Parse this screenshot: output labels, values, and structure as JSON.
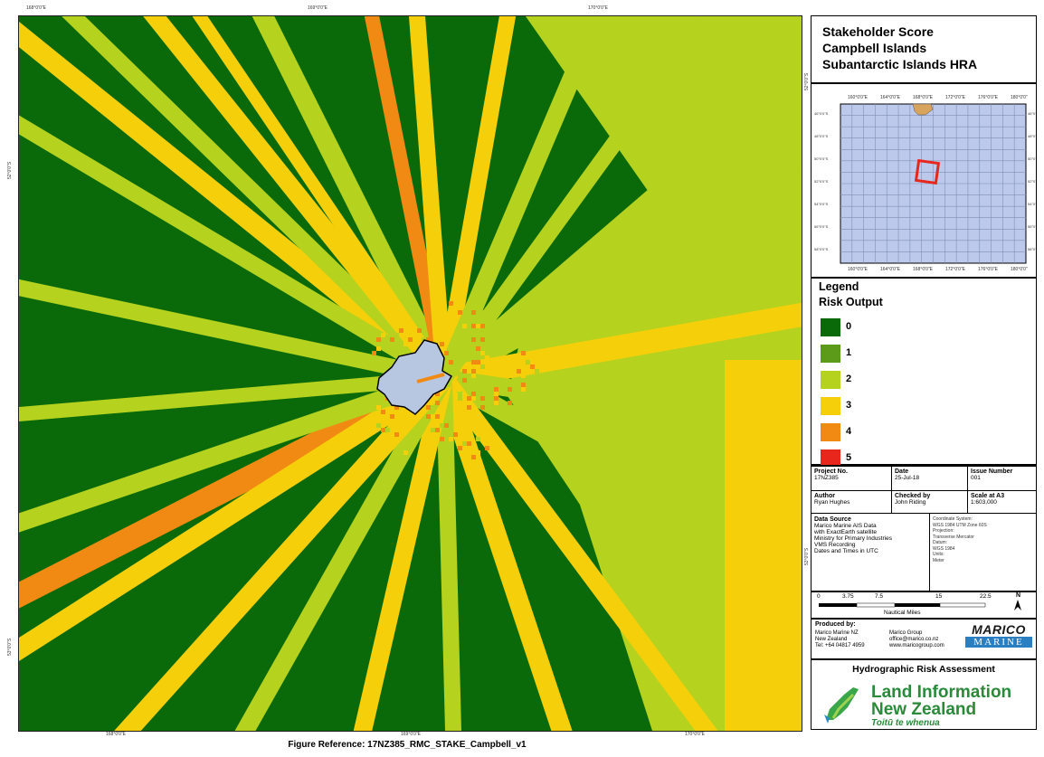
{
  "map": {
    "lon_ticks": [
      "168°0'0\"E",
      "169°0'0\"E",
      "170°0'0\"E"
    ],
    "lat_ticks": [
      "52°0'0\"S",
      "53°0'0\"S"
    ],
    "figure_reference": "Figure Reference: 17NZ385_RMC_STAKE_Campbell_v1",
    "colors": {
      "0": "#0a6a0a",
      "1": "#5c9a1a",
      "2": "#b5d21e",
      "3": "#f6cf0b",
      "4": "#f18a13",
      "5": "#e8261c",
      "land": "#b7c6e1"
    }
  },
  "title": {
    "line1": "Stakeholder Score",
    "line2": "Campbell Islands",
    "line3": "Subantarctic Islands HRA"
  },
  "inset": {
    "lon_labels": [
      "160°0'0\"E",
      "164°0'0\"E",
      "168°0'0\"E",
      "172°0'0\"E",
      "176°0'0\"E",
      "180°0'0\""
    ],
    "lat_labels": [
      "46°0'0\"S",
      "48°0'0\"S",
      "50°0'0\"S",
      "52°0'0\"S",
      "54°0'0\"S",
      "56°0'0\"S",
      "58°0'0\"S"
    ]
  },
  "legend": {
    "title": "Legend",
    "subtitle": "Risk Output",
    "items": [
      {
        "label": "0",
        "color": "#0a6a0a"
      },
      {
        "label": "1",
        "color": "#5c9a1a"
      },
      {
        "label": "2",
        "color": "#b5d21e"
      },
      {
        "label": "3",
        "color": "#f6cf0b"
      },
      {
        "label": "4",
        "color": "#f18a13"
      },
      {
        "label": "5",
        "color": "#e8261c"
      }
    ]
  },
  "meta": {
    "project_no_label": "Project No.",
    "project_no": "17NZ385",
    "date_label": "Date",
    "date": "25-Jul-18",
    "issue_label": "Issue Number",
    "issue": "001",
    "author_label": "Author",
    "author": "Ryan Hughes",
    "checked_label": "Checked by",
    "checked": "John Riding",
    "scale_label": "Scale at A3",
    "scale": "1:603,000",
    "data_source_label": "Data Source",
    "data_source_lines": [
      "Marico Marine AIS Data",
      "with ExactEarth satellite",
      "Ministry for Primary Industries",
      "VMS Recording",
      "Dates and Times in UTC"
    ],
    "coord_lines": [
      "Coordinate System:",
      "WGS 1984 UTM Zone 60S",
      "Projection:",
      "Transverse Mercator",
      "Datum:",
      "WGS 1984",
      "Units:",
      "Meter"
    ]
  },
  "scalebar": {
    "ticks": [
      "0",
      "3.75",
      "7.5",
      "15",
      "22.5"
    ],
    "units": "Nautical Miles",
    "north": "N"
  },
  "producer": {
    "label": "Produced by:",
    "left_lines": [
      "Marico Marine NZ",
      "New Zealand",
      "Tel: +64 04817 4959"
    ],
    "right_lines": [
      "Marico Group",
      "office@marico.co.nz",
      "www.maricogroup.com"
    ],
    "logo_top": "MARICO",
    "logo_bottom": "MARINE"
  },
  "hra": {
    "heading": "Hydrographic Risk Assessment",
    "linz_line1": "Land Information",
    "linz_line2": "New Zealand",
    "linz_line3": "Toitū te whenua"
  }
}
